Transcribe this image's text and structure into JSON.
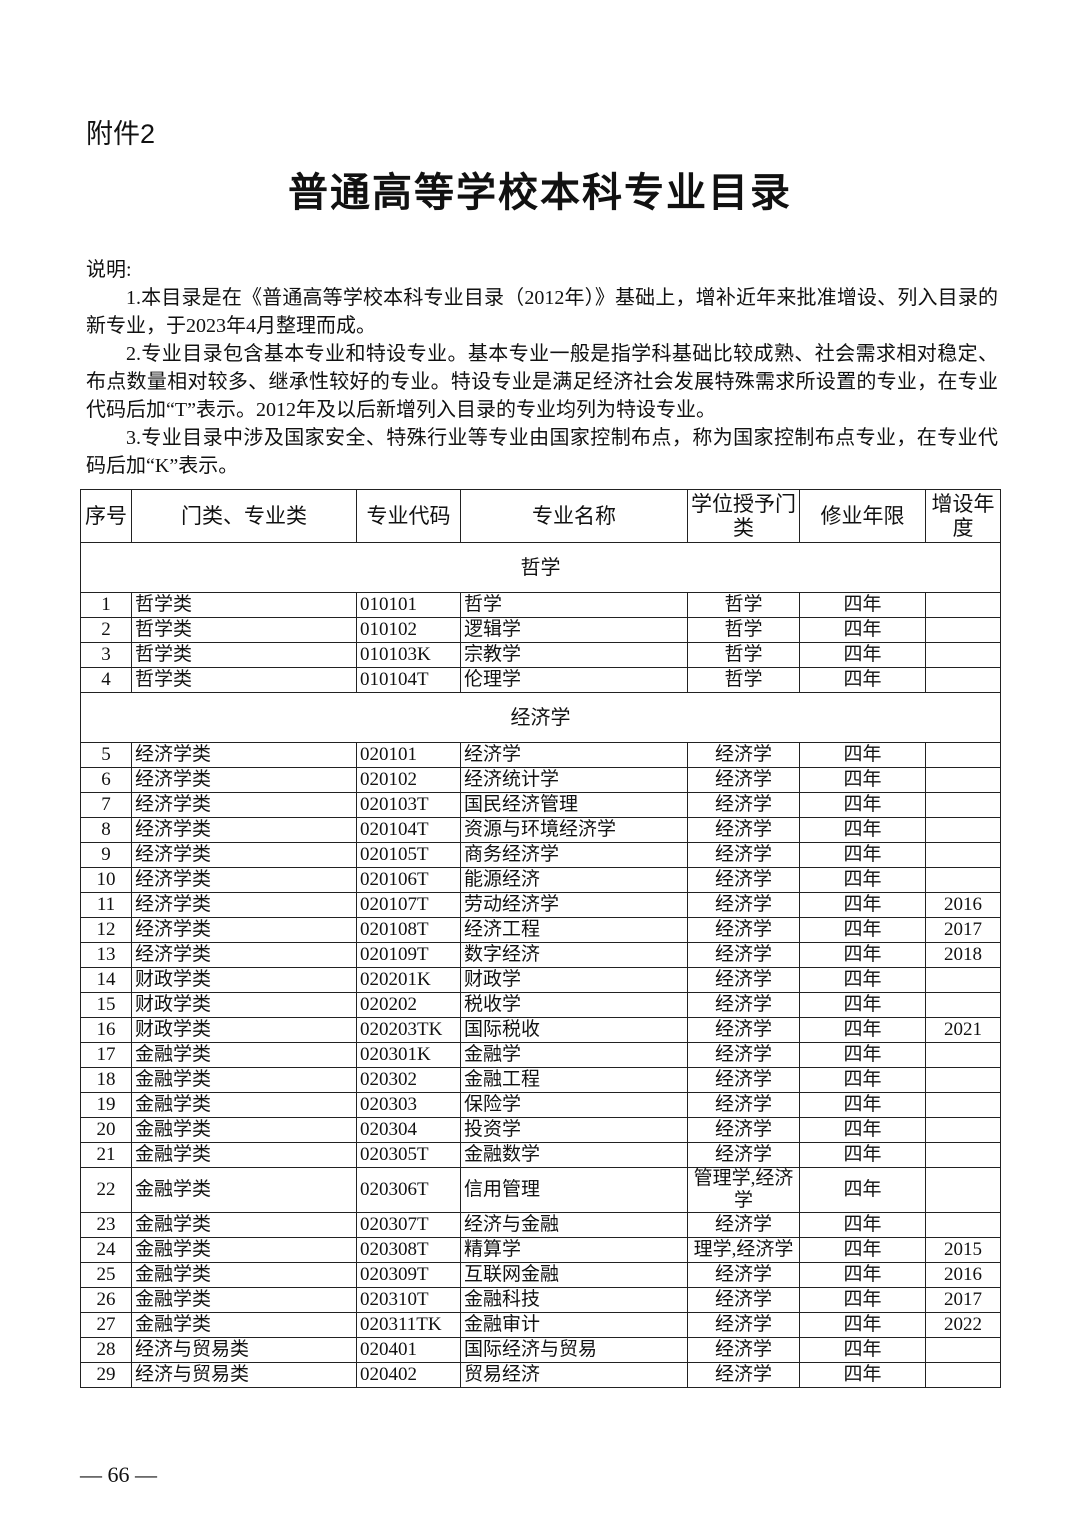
{
  "header": {
    "attachment": "附件2",
    "title": "普通高等学校本科专业目录"
  },
  "notes": {
    "label": "说明:",
    "paragraphs": [
      "1.本目录是在《普通高等学校本科专业目录（2012年）》基础上，增补近年来批准增设、列入目录的新专业，于2023年4月整理而成。",
      "2.专业目录包含基本专业和特设专业。基本专业一般是指学科基础比较成熟、社会需求相对稳定、布点数量相对较多、继承性较好的专业。特设专业是满足经济社会发展特殊需求所设置的专业，在专业代码后加“T”表示。2012年及以后新增列入目录的专业均列为特设专业。",
      "3.专业目录中涉及国家安全、特殊行业等专业由国家控制布点，称为国家控制布点专业，在专业代码后加“K”表示。"
    ]
  },
  "table": {
    "header": [
      "序号",
      "门类、专业类",
      "专业代码",
      "专业名称",
      "学位授予门类",
      "修业年限",
      "增设年度"
    ],
    "sections": [
      {
        "title": "哲学",
        "rows": [
          [
            "1",
            "哲学类",
            "010101",
            "哲学",
            "哲学",
            "四年",
            null
          ],
          [
            "2",
            "哲学类",
            "010102",
            "逻辑学",
            "哲学",
            "四年",
            null
          ],
          [
            "3",
            "哲学类",
            "010103K",
            "宗教学",
            "哲学",
            "四年",
            null
          ],
          [
            "4",
            "哲学类",
            "010104T",
            "伦理学",
            "哲学",
            "四年",
            null
          ]
        ]
      },
      {
        "title": "经济学",
        "rows": [
          [
            "5",
            "经济学类",
            "020101",
            "经济学",
            "经济学",
            "四年",
            null
          ],
          [
            "6",
            "经济学类",
            "020102",
            "经济统计学",
            "经济学",
            "四年",
            null
          ],
          [
            "7",
            "经济学类",
            "020103T",
            "国民经济管理",
            "经济学",
            "四年",
            null
          ],
          [
            "8",
            "经济学类",
            "020104T",
            "资源与环境经济学",
            "经济学",
            "四年",
            null
          ],
          [
            "9",
            "经济学类",
            "020105T",
            "商务经济学",
            "经济学",
            "四年",
            null
          ],
          [
            "10",
            "经济学类",
            "020106T",
            "能源经济",
            "经济学",
            "四年",
            null
          ],
          [
            "11",
            "经济学类",
            "020107T",
            "劳动经济学",
            "经济学",
            "四年",
            "2016"
          ],
          [
            "12",
            "经济学类",
            "020108T",
            "经济工程",
            "经济学",
            "四年",
            "2017"
          ],
          [
            "13",
            "经济学类",
            "020109T",
            "数字经济",
            "经济学",
            "四年",
            "2018"
          ],
          [
            "14",
            "财政学类",
            "020201K",
            "财政学",
            "经济学",
            "四年",
            null
          ],
          [
            "15",
            "财政学类",
            "020202",
            "税收学",
            "经济学",
            "四年",
            null
          ],
          [
            "16",
            "财政学类",
            "020203TK",
            "国际税收",
            "经济学",
            "四年",
            "2021"
          ],
          [
            "17",
            "金融学类",
            "020301K",
            "金融学",
            "经济学",
            "四年",
            null
          ],
          [
            "18",
            "金融学类",
            "020302",
            "金融工程",
            "经济学",
            "四年",
            null
          ],
          [
            "19",
            "金融学类",
            "020303",
            "保险学",
            "经济学",
            "四年",
            null
          ],
          [
            "20",
            "金融学类",
            "020304",
            "投资学",
            "经济学",
            "四年",
            null
          ],
          [
            "21",
            "金融学类",
            "020305T",
            "金融数学",
            "经济学",
            "四年",
            null
          ],
          [
            "22",
            "金融学类",
            "020306T",
            "信用管理",
            "管理学,经济学",
            "四年",
            null
          ],
          [
            "23",
            "金融学类",
            "020307T",
            "经济与金融",
            "经济学",
            "四年",
            null
          ],
          [
            "24",
            "金融学类",
            "020308T",
            "精算学",
            "理学,经济学",
            "四年",
            "2015"
          ],
          [
            "25",
            "金融学类",
            "020309T",
            "互联网金融",
            "经济学",
            "四年",
            "2016"
          ],
          [
            "26",
            "金融学类",
            "020310T",
            "金融科技",
            "经济学",
            "四年",
            "2017"
          ],
          [
            "27",
            "金融学类",
            "020311TK",
            "金融审计",
            "经济学",
            "四年",
            "2022"
          ],
          [
            "28",
            "经济与贸易类",
            "020401",
            "国际经济与贸易",
            "经济学",
            "四年",
            null
          ],
          [
            "29",
            "经济与贸易类",
            "020402",
            "贸易经济",
            "经济学",
            "四年",
            null
          ]
        ]
      }
    ]
  },
  "footer": {
    "page": "— 66 —"
  }
}
